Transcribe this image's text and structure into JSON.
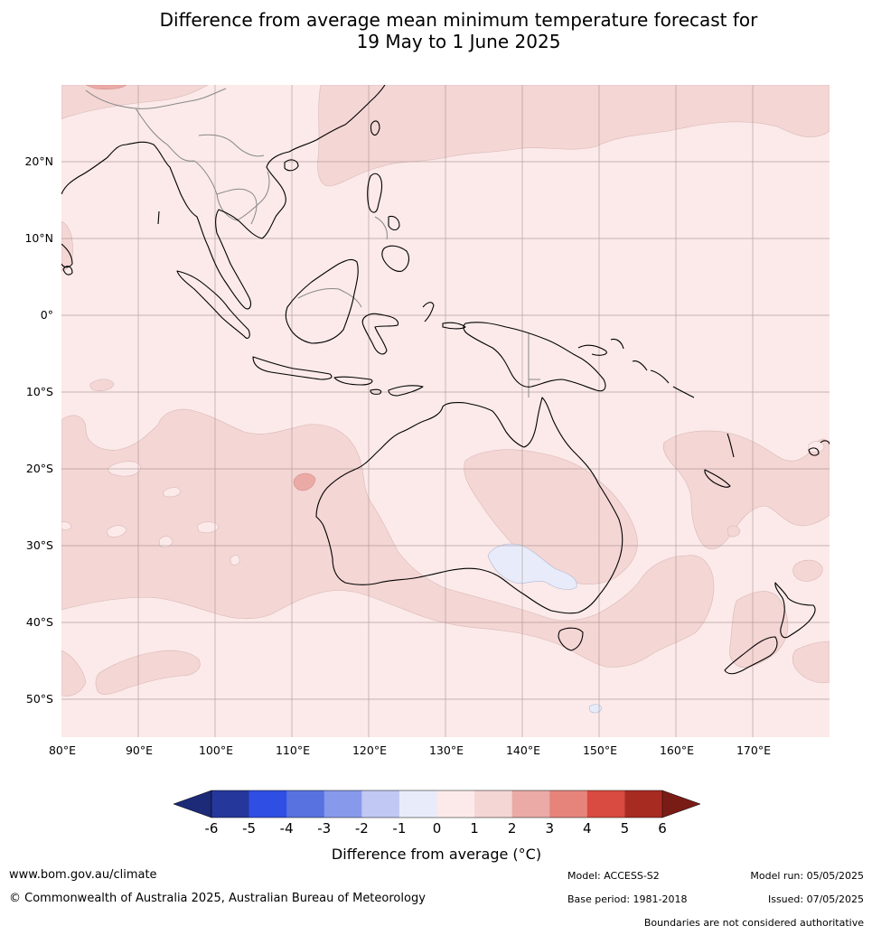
{
  "title_line1": "Difference from average mean minimum temperature forecast for",
  "title_line2": "19 May to 1 June 2025",
  "lat_labels": [
    "20°N",
    "10°N",
    "0°",
    "10°S",
    "20°S",
    "30°S",
    "40°S",
    "50°S"
  ],
  "lon_labels": [
    "80°E",
    "90°E",
    "100°E",
    "110°E",
    "120°E",
    "130°E",
    "140°E",
    "150°E",
    "160°E",
    "170°E"
  ],
  "colorbar": {
    "tick_labels": [
      "-6",
      "-5",
      "-4",
      "-3",
      "-2",
      "-1",
      "0",
      "1",
      "2",
      "3",
      "4",
      "5",
      "6"
    ],
    "colors": [
      "#26379b",
      "#2f4ee3",
      "#5873e0",
      "#8799eb",
      "#c0c8f3",
      "#e8ecfa",
      "#fbeae9",
      "#f4d6d4",
      "#ebaaa6",
      "#e6847c",
      "#d94a40",
      "#a82b22"
    ],
    "under_color": "#1c2a78",
    "over_color": "#7a1c16",
    "title": "Difference from average (°C)"
  },
  "map_colors": {
    "base_fill": "#fbeae9",
    "band_1_2": "#f4d6d4",
    "band_2_3": "#ebaaa6",
    "band_neg": "#e8ecfa",
    "coastline": "#000000",
    "borders": "#888888",
    "grid": "#a58e8e"
  },
  "footer": {
    "website": "www.bom.gov.au/climate",
    "copyright": "© Commonwealth of Australia 2025, Australian Bureau of Meteorology",
    "model": "Model: ACCESS-S2",
    "model_run": "Model run: 05/05/2025",
    "base_period": "Base period: 1981-2018",
    "issued": "Issued: 07/05/2025",
    "disclaimer": "Boundaries are not considered authoritative"
  }
}
